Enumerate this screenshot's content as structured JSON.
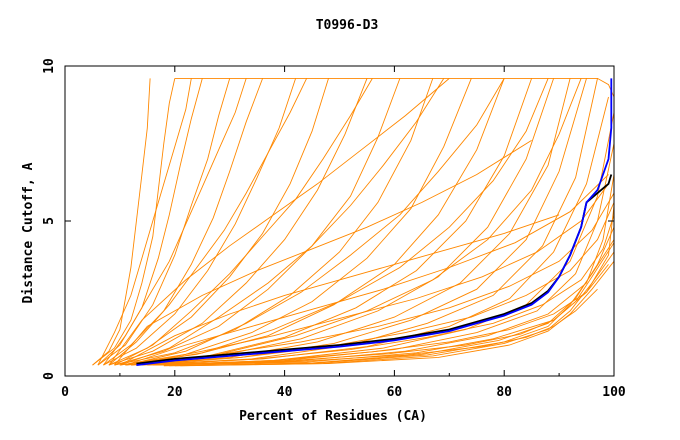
{
  "chart_data": {
    "type": "line",
    "title": "T0996-D3",
    "xlabel": "Percent of Residues (CA)",
    "ylabel": "Distance Cutoff, A",
    "xlim": [
      0,
      100
    ],
    "ylim": [
      0,
      10
    ],
    "xticks": [
      0,
      20,
      40,
      60,
      80,
      100
    ],
    "yticks": [
      0,
      5,
      10
    ],
    "grid": false,
    "colors": {
      "background_models": "#ff8800",
      "best_model": "#0000ff",
      "reference_model": "#000000"
    },
    "series": [
      {
        "name": "best_model",
        "color": "#0000ff",
        "x": [
          13,
          20,
          30,
          40,
          50,
          60,
          70,
          75,
          80,
          85,
          88,
          90,
          92,
          94,
          95,
          97,
          99,
          99.5,
          99.5
        ],
        "y": [
          0.35,
          0.5,
          0.65,
          0.8,
          0.95,
          1.15,
          1.45,
          1.7,
          1.95,
          2.3,
          2.7,
          3.2,
          3.9,
          4.8,
          5.6,
          6.0,
          7.0,
          8.0,
          9.6
        ]
      },
      {
        "name": "reference_model",
        "color": "#000000",
        "x": [
          13,
          20,
          30,
          40,
          50,
          60,
          70,
          75,
          80,
          85,
          88,
          90,
          92,
          94,
          95,
          97,
          99,
          99.5
        ],
        "y": [
          0.4,
          0.55,
          0.7,
          0.85,
          1.0,
          1.2,
          1.5,
          1.75,
          2.0,
          2.35,
          2.75,
          3.2,
          3.9,
          4.8,
          5.6,
          5.9,
          6.2,
          6.5
        ]
      }
    ],
    "background_models": [
      {
        "x": [
          5,
          8,
          10,
          11,
          12,
          13,
          14,
          15,
          15.5
        ],
        "y": [
          0.35,
          0.8,
          1.5,
          2.5,
          3.5,
          5,
          6.5,
          8,
          9.6
        ]
      },
      {
        "x": [
          5,
          9,
          12,
          14,
          16,
          17,
          18,
          19,
          20
        ],
        "y": [
          0.35,
          0.9,
          1.8,
          3,
          4.5,
          6,
          7.5,
          8.8,
          9.6
        ]
      },
      {
        "x": [
          6,
          10,
          14,
          17,
          19,
          21,
          23,
          25
        ],
        "y": [
          0.35,
          1.0,
          2.2,
          3.8,
          5.2,
          6.8,
          8.3,
          9.6
        ]
      },
      {
        "x": [
          6,
          11,
          16,
          20,
          23,
          26,
          28,
          30
        ],
        "y": [
          0.35,
          1.0,
          2.3,
          3.9,
          5.5,
          7.0,
          8.4,
          9.6
        ]
      },
      {
        "x": [
          7,
          12,
          18,
          23,
          27,
          30,
          33,
          36
        ],
        "y": [
          0.35,
          1.0,
          2.1,
          3.6,
          5.1,
          6.6,
          8.2,
          9.6
        ]
      },
      {
        "x": [
          7,
          13,
          20,
          26,
          31,
          35,
          39,
          42
        ],
        "y": [
          0.35,
          0.9,
          2.0,
          3.4,
          4.9,
          6.4,
          8.0,
          9.6
        ]
      },
      {
        "x": [
          8,
          15,
          23,
          30,
          36,
          41,
          45,
          48
        ],
        "y": [
          0.35,
          0.9,
          1.9,
          3.2,
          4.6,
          6.2,
          7.9,
          9.6
        ]
      },
      {
        "x": [
          8,
          16,
          25,
          33,
          40,
          46,
          51,
          55
        ],
        "y": [
          0.35,
          0.8,
          1.7,
          3.0,
          4.4,
          6.0,
          7.8,
          9.6
        ]
      },
      {
        "x": [
          9,
          18,
          28,
          37,
          45,
          52,
          57,
          61
        ],
        "y": [
          0.35,
          0.8,
          1.6,
          2.8,
          4.2,
          5.8,
          7.7,
          9.6
        ]
      },
      {
        "x": [
          9,
          20,
          31,
          41,
          50,
          57,
          63,
          67
        ],
        "y": [
          0.35,
          0.75,
          1.5,
          2.6,
          4.0,
          5.6,
          7.6,
          9.6
        ]
      },
      {
        "x": [
          10,
          22,
          34,
          45,
          55,
          63,
          69,
          74
        ],
        "y": [
          0.35,
          0.7,
          1.4,
          2.4,
          3.8,
          5.4,
          7.4,
          9.6
        ]
      },
      {
        "x": [
          10,
          24,
          37,
          49,
          60,
          68,
          75,
          80
        ],
        "y": [
          0.35,
          0.7,
          1.3,
          2.3,
          3.6,
          5.2,
          7.3,
          9.6
        ]
      },
      {
        "x": [
          11,
          26,
          40,
          53,
          64,
          73,
          80,
          85
        ],
        "y": [
          0.35,
          0.65,
          1.25,
          2.2,
          3.4,
          5.0,
          7.1,
          9.6
        ]
      },
      {
        "x": [
          11,
          28,
          43,
          57,
          68,
          77,
          84,
          89
        ],
        "y": [
          0.35,
          0.65,
          1.2,
          2.1,
          3.2,
          4.8,
          7.0,
          9.6
        ]
      },
      {
        "x": [
          12,
          30,
          46,
          60,
          72,
          81,
          88,
          92
        ],
        "y": [
          0.35,
          0.6,
          1.1,
          1.9,
          3.0,
          4.6,
          6.8,
          9.6
        ]
      },
      {
        "x": [
          12,
          32,
          49,
          63,
          75,
          84,
          90,
          95
        ],
        "y": [
          0.35,
          0.6,
          1.05,
          1.8,
          2.8,
          4.4,
          6.6,
          9.6
        ]
      },
      {
        "x": [
          13,
          34,
          52,
          66,
          78,
          87,
          93,
          97
        ],
        "y": [
          0.35,
          0.55,
          1.0,
          1.7,
          2.6,
          4.2,
          6.4,
          9.6
        ]
      },
      {
        "x": [
          14,
          36,
          55,
          70,
          81,
          89,
          95,
          99
        ],
        "y": [
          0.35,
          0.55,
          0.95,
          1.6,
          2.5,
          4.0,
          6.2,
          9.0
        ]
      },
      {
        "x": [
          15,
          38,
          58,
          73,
          84,
          92,
          97,
          100
        ],
        "y": [
          0.35,
          0.5,
          0.9,
          1.5,
          2.3,
          3.7,
          5.8,
          8.5
        ]
      },
      {
        "x": [
          16,
          40,
          60,
          75,
          86,
          93,
          97,
          100
        ],
        "y": [
          0.35,
          0.5,
          0.85,
          1.4,
          2.1,
          3.3,
          5.0,
          7.5
        ]
      },
      {
        "x": [
          17,
          42,
          62,
          77,
          88,
          95,
          98,
          100
        ],
        "y": [
          0.35,
          0.48,
          0.8,
          1.3,
          2.0,
          3.0,
          4.4,
          6.5
        ]
      },
      {
        "x": [
          18,
          44,
          64,
          78,
          89,
          95,
          99,
          100
        ],
        "y": [
          0.35,
          0.45,
          0.75,
          1.2,
          1.8,
          2.7,
          3.9,
          5.5
        ]
      },
      {
        "x": [
          18,
          45,
          65,
          79,
          88,
          93,
          97,
          100
        ],
        "y": [
          0.33,
          0.42,
          0.7,
          1.15,
          1.7,
          2.5,
          3.6,
          4.8
        ]
      },
      {
        "x": [
          19,
          46,
          66,
          80,
          88,
          92,
          96,
          100
        ],
        "y": [
          0.33,
          0.42,
          0.68,
          1.1,
          1.6,
          2.3,
          3.3,
          4.4
        ]
      },
      {
        "x": [
          20,
          47,
          67,
          80,
          88,
          92,
          96,
          100
        ],
        "y": [
          0.33,
          0.4,
          0.65,
          1.05,
          1.5,
          2.1,
          3.0,
          4.0
        ]
      },
      {
        "x": [
          21,
          48,
          68,
          81,
          88,
          92,
          96,
          100
        ],
        "y": [
          0.33,
          0.4,
          0.6,
          1.0,
          1.45,
          2.0,
          2.8,
          3.7
        ]
      },
      {
        "x": [
          10,
          20,
          30,
          40,
          50,
          60,
          70,
          80,
          90
        ],
        "y": [
          0.35,
          1.3,
          2.0,
          2.6,
          3.1,
          3.6,
          4.1,
          4.6,
          5.2
        ]
      },
      {
        "x": [
          9,
          15,
          25,
          35,
          45,
          55,
          65,
          75,
          85
        ],
        "y": [
          0.35,
          1.6,
          2.6,
          3.4,
          4.1,
          4.8,
          5.6,
          6.5,
          7.6
        ]
      },
      {
        "x": [
          8,
          14,
          22,
          30,
          38,
          46,
          54,
          62,
          70
        ],
        "y": [
          0.35,
          1.8,
          3.1,
          4.2,
          5.2,
          6.2,
          7.3,
          8.4,
          9.6
        ]
      },
      {
        "x": [
          11,
          22,
          34,
          46,
          58,
          70,
          82,
          92,
          99
        ],
        "y": [
          0.35,
          1.0,
          1.6,
          2.2,
          2.8,
          3.5,
          4.3,
          5.3,
          6.5
        ]
      },
      {
        "x": [
          12,
          25,
          38,
          51,
          64,
          76,
          86,
          94,
          99
        ],
        "y": [
          0.35,
          0.8,
          1.3,
          1.9,
          2.5,
          3.2,
          4.0,
          5.0,
          6.2
        ]
      },
      {
        "x": [
          13,
          28,
          43,
          57,
          70,
          81,
          90,
          96,
          100
        ],
        "y": [
          0.35,
          0.7,
          1.1,
          1.6,
          2.2,
          2.9,
          3.7,
          4.7,
          5.9
        ]
      },
      {
        "x": [
          14,
          32,
          48,
          62,
          74,
          84,
          92,
          97,
          100
        ],
        "y": [
          0.35,
          0.6,
          0.95,
          1.4,
          1.9,
          2.6,
          3.4,
          4.4,
          5.6
        ]
      },
      {
        "x": [
          15,
          35,
          52,
          66,
          78,
          87,
          94,
          98,
          100
        ],
        "y": [
          0.35,
          0.55,
          0.85,
          1.25,
          1.7,
          2.3,
          3.1,
          4.1,
          5.2
        ]
      },
      {
        "x": [
          16,
          38,
          56,
          70,
          81,
          89,
          95,
          99
        ],
        "y": [
          0.35,
          0.5,
          0.78,
          1.1,
          1.5,
          2.0,
          2.7,
          3.6
        ]
      },
      {
        "x": [
          16,
          40,
          59,
          73,
          83,
          89,
          93,
          96,
          100
        ],
        "y": [
          0.35,
          0.48,
          0.72,
          1.0,
          1.35,
          1.8,
          2.4,
          3.2,
          4.3
        ]
      },
      {
        "x": [
          17,
          42,
          62,
          76,
          84,
          89,
          93,
          97
        ],
        "y": [
          0.35,
          0.46,
          0.68,
          0.95,
          1.25,
          1.6,
          2.1,
          2.8
        ]
      },
      {
        "x": [
          6,
          9,
          12,
          14,
          16,
          18,
          20,
          22,
          23
        ],
        "y": [
          0.35,
          1.4,
          2.6,
          3.8,
          5.0,
          6.2,
          7.4,
          8.6,
          9.6
        ]
      },
      {
        "x": [
          7,
          11,
          15,
          19,
          22,
          25,
          28,
          31,
          33
        ],
        "y": [
          0.35,
          1.3,
          2.5,
          3.7,
          4.9,
          6.1,
          7.3,
          8.5,
          9.6
        ]
      },
      {
        "x": [
          8,
          13,
          19,
          24,
          29,
          33,
          37,
          41,
          44
        ],
        "y": [
          0.35,
          1.1,
          2.3,
          3.5,
          4.7,
          5.9,
          7.2,
          8.5,
          9.6
        ]
      },
      {
        "x": [
          9,
          16,
          23,
          30,
          36,
          42,
          47,
          52,
          56
        ],
        "y": [
          0.35,
          1.0,
          2.1,
          3.3,
          4.5,
          5.7,
          7.0,
          8.4,
          9.6
        ]
      },
      {
        "x": [
          10,
          19,
          28,
          37,
          45,
          52,
          58,
          64,
          69
        ],
        "y": [
          0.35,
          0.9,
          1.9,
          3.0,
          4.2,
          5.5,
          6.8,
          8.2,
          9.6
        ]
      },
      {
        "x": [
          11,
          22,
          33,
          43,
          52,
          61,
          68,
          75,
          80
        ],
        "y": [
          0.35,
          0.8,
          1.7,
          2.7,
          3.9,
          5.2,
          6.6,
          8.1,
          9.6
        ]
      },
      {
        "x": [
          12,
          25,
          38,
          50,
          61,
          70,
          78,
          84,
          88
        ],
        "y": [
          0.35,
          0.75,
          1.5,
          2.4,
          3.5,
          4.8,
          6.3,
          7.9,
          9.6
        ]
      },
      {
        "x": [
          13,
          28,
          42,
          55,
          67,
          77,
          85,
          90,
          94
        ],
        "y": [
          0.35,
          0.7,
          1.3,
          2.1,
          3.1,
          4.4,
          6.0,
          7.8,
          9.6
        ]
      },
      {
        "x": [
          20,
          40,
          60,
          80,
          97,
          99,
          100
        ],
        "y": [
          9.6,
          9.6,
          9.6,
          9.6,
          9.6,
          9.4,
          9.0
        ]
      }
    ]
  }
}
